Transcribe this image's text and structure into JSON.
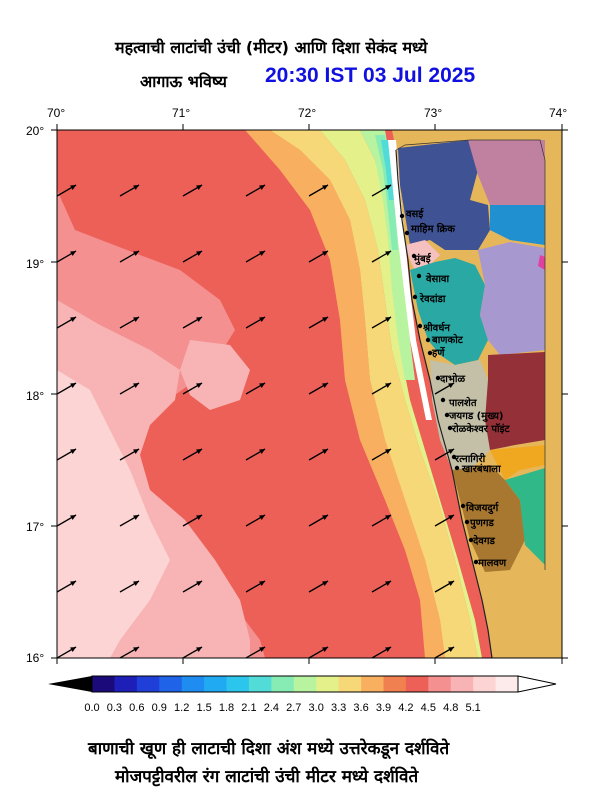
{
  "header": {
    "title_line1": "महत्वाची लाटांची उंची (मीटर) आणि दिशा सेकंद मध्ये",
    "title_line2": "आगाऊ भविष्य",
    "datetime": "20:30 IST 03 Jul 2025"
  },
  "axes": {
    "lon_labels": [
      "70°",
      "71°",
      "72°",
      "73°",
      "74°"
    ],
    "lat_labels": [
      "20°",
      "19°",
      "18°",
      "17°",
      "16°"
    ]
  },
  "colorbar": {
    "ticks": [
      "0.0",
      "0.3",
      "0.6",
      "0.9",
      "1.2",
      "1.5",
      "1.8",
      "2.1",
      "2.4",
      "2.7",
      "3.0",
      "3.3",
      "3.6",
      "3.9",
      "4.2",
      "4.5",
      "4.8",
      "5.1"
    ],
    "colors": [
      "#1a0a7a",
      "#1e1eb8",
      "#1f3fd8",
      "#1f64e8",
      "#1e8cf0",
      "#20aaf2",
      "#2cc6ec",
      "#52dcd8",
      "#86ecb4",
      "#b8f4a0",
      "#e4f08a",
      "#f6d878",
      "#f8b060",
      "#f08050",
      "#ec6058",
      "#f49090",
      "#f8b4b4",
      "#fcd4d4",
      "#fdeaea"
    ]
  },
  "places": [
    "वसई",
    "माहिम क्रिक",
    "मुंबई",
    "वेसावा",
    "रेवदांडा",
    "श्रीवर्धन",
    "बाणकोट",
    "हर्णे",
    "दाभोळ",
    "पालशेत",
    "जयगड (मुख्य)",
    "रोळकेश्वर पॉइंट",
    "रत्नागिरी",
    "खारबंधाला",
    "विजयदुर्ग",
    "पुणगड",
    "देवगड",
    "मालवण"
  ],
  "notes": {
    "line1": "बाणाची खूण ही लाटाची दिशा अंश मध्ये उत्तरेकडून दर्शविते",
    "line2": "मोजपट्टीवरील रंग लाटांची उंची मीटर मध्ये दर्शविते"
  },
  "arrow_direction_deg": 250
}
